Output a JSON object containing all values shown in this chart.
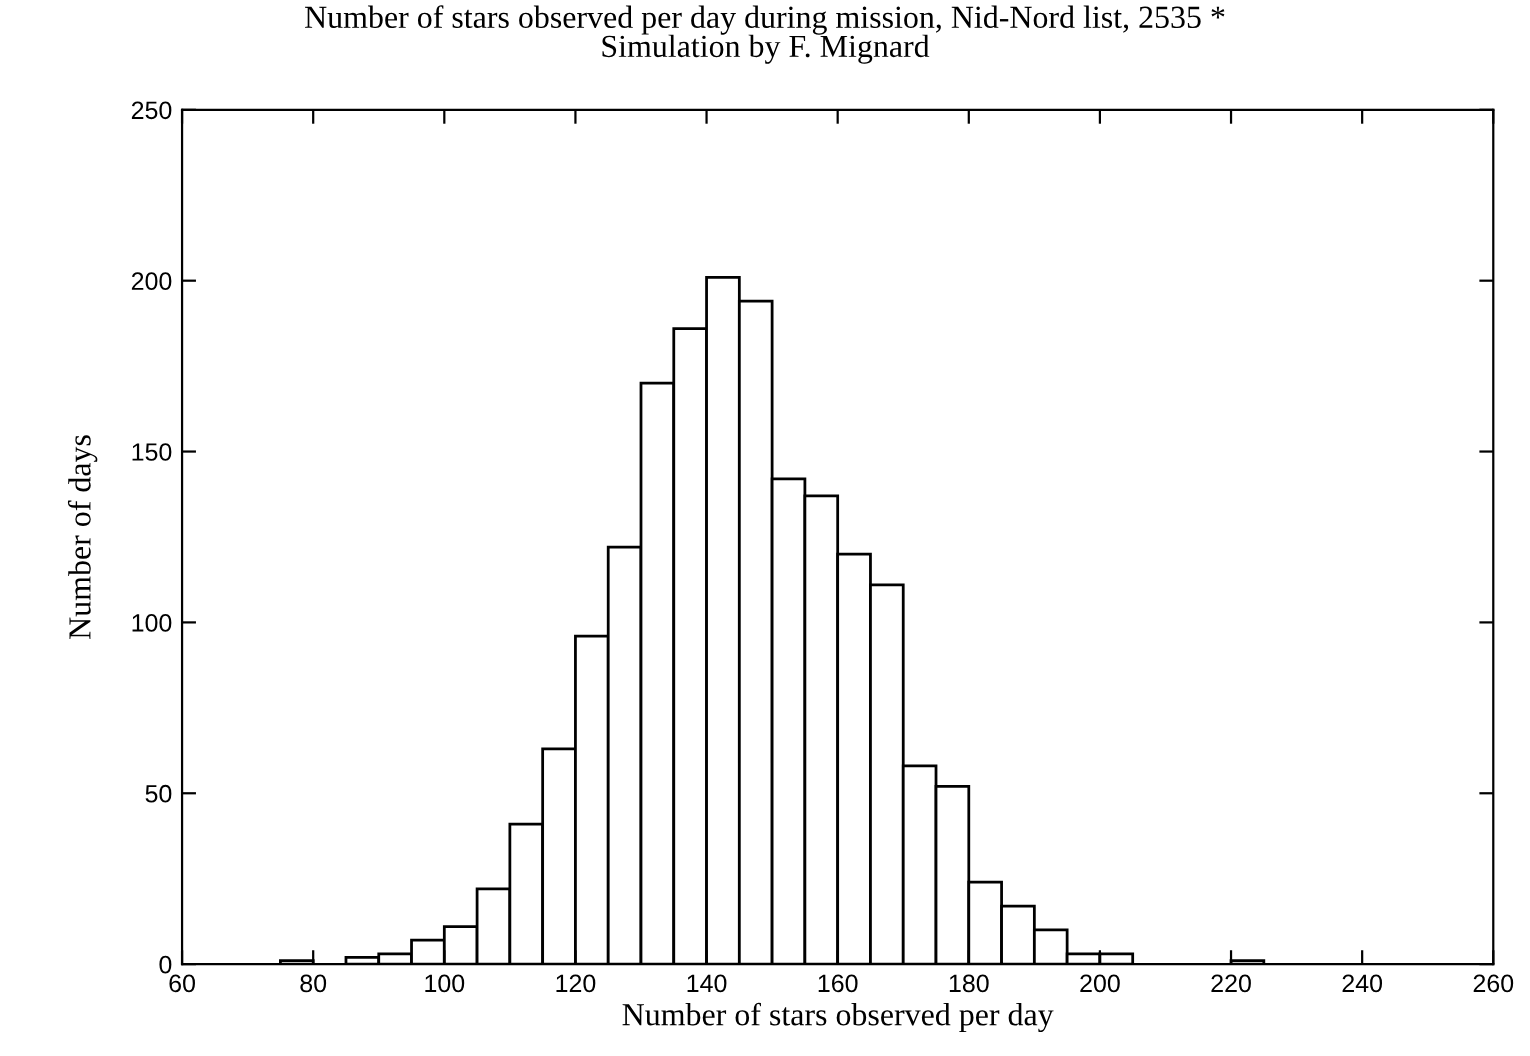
{
  "chart_data": {
    "type": "histogram",
    "title": "Number of stars observed per day during mission, Nid-Nord list, 2535 *",
    "subtitle": "Simulation by F. Mignard",
    "xlabel": "Number of stars observed per day",
    "ylabel": "Number of days",
    "bins": [
      75,
      80,
      85,
      90,
      95,
      100,
      105,
      110,
      115,
      120,
      125,
      130,
      135,
      140,
      145,
      150,
      155,
      160,
      165,
      170,
      175,
      180,
      185,
      190,
      195,
      200,
      205,
      210,
      215,
      220,
      225
    ],
    "values": [
      1,
      0,
      2,
      3,
      7,
      11,
      22,
      41,
      63,
      96,
      122,
      170,
      186,
      201,
      194,
      142,
      137,
      120,
      111,
      58,
      52,
      24,
      17,
      10,
      3,
      3,
      0,
      0,
      0,
      1
    ],
    "color": "#ffffff",
    "xlim": [
      60,
      260
    ],
    "xticks": [
      60,
      80,
      100,
      120,
      140,
      160,
      180,
      200,
      220,
      240,
      260
    ],
    "ylim": [
      0,
      250
    ],
    "yticks": [
      0,
      50,
      100,
      150,
      200,
      250
    ],
    "grid": false,
    "legend": false
  }
}
